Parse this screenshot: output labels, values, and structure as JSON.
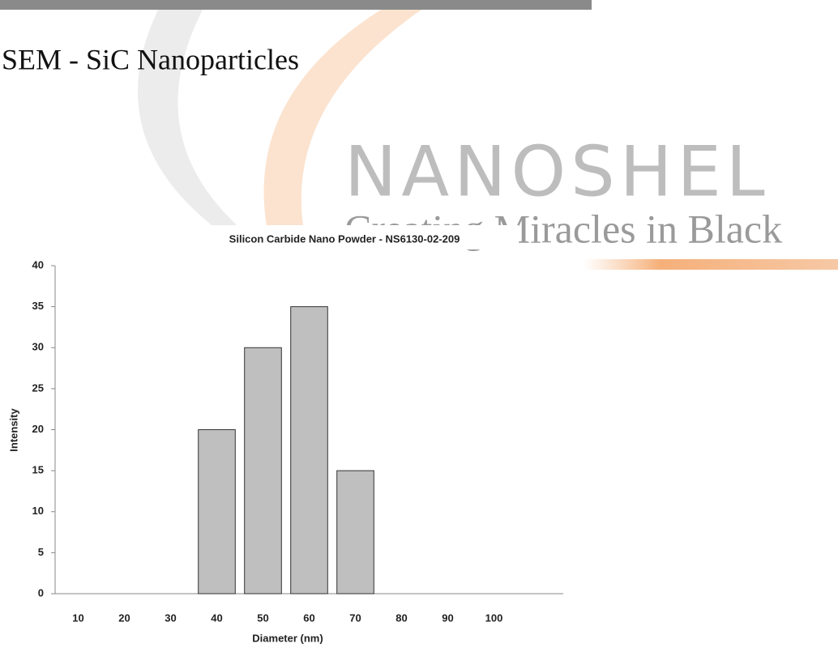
{
  "heading": "SEM - SiC Nanoparticles",
  "logo": {
    "name": "NANOSHEL",
    "tagline": "Creating Miracles in Black"
  },
  "chart_data": {
    "type": "bar",
    "title": "Silicon Carbide Nano Powder - NS6130-02-209",
    "x_label": "Diameter (nm)",
    "y_label": "Intensity",
    "categories": [
      "10",
      "20",
      "30",
      "40",
      "50",
      "60",
      "70",
      "80",
      "90",
      "100",
      null
    ],
    "values": [
      0,
      0,
      0,
      20,
      30,
      35,
      15,
      0,
      0,
      0,
      0
    ],
    "color": "#bfbfbf",
    "ylim": [
      0,
      40
    ],
    "yticks": [
      0,
      5,
      10,
      15,
      20,
      25,
      30,
      35,
      40
    ],
    "grid": false
  }
}
